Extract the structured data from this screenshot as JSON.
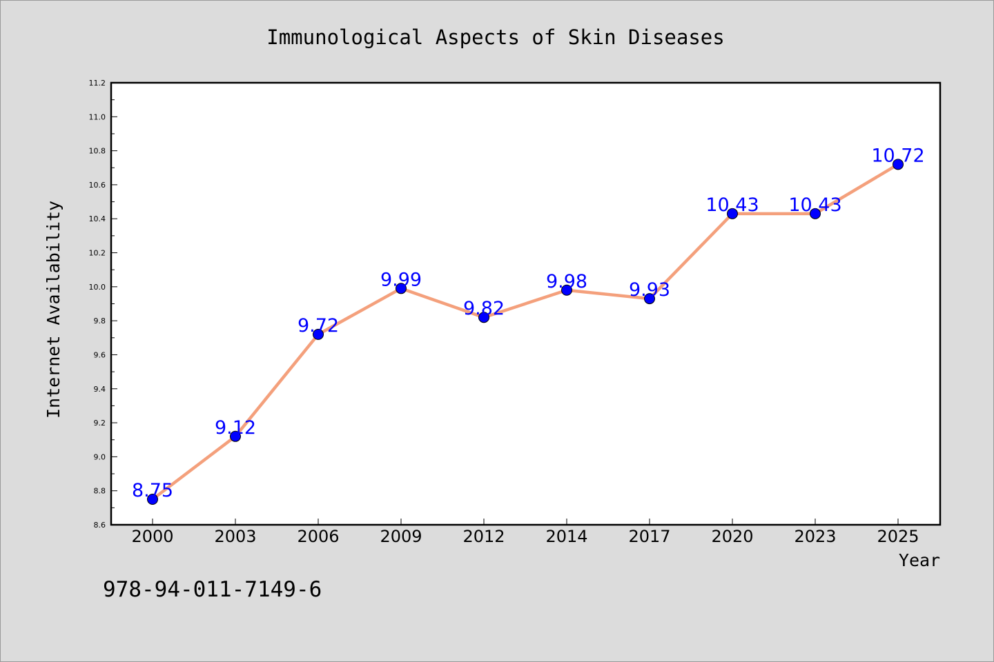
{
  "chart_data": {
    "type": "line",
    "title": "Immunological Aspects of Skin Diseases",
    "xlabel": "Year",
    "ylabel": "Internet Availability",
    "categories": [
      "2000",
      "2003",
      "2006",
      "2009",
      "2012",
      "2014",
      "2017",
      "2020",
      "2023",
      "2025"
    ],
    "series": [
      {
        "values": [
          8.75,
          9.12,
          9.72,
          9.99,
          9.82,
          9.98,
          9.93,
          10.43,
          10.43,
          10.72
        ],
        "labels": [
          "8.75",
          "9.12",
          "9.72",
          "9.99",
          "9.82",
          "9.98",
          "9.93",
          "10.43",
          "10.43",
          "10.72"
        ],
        "line_color": "#f4a07c",
        "marker_color": "#0000ff",
        "label_color": "#0000ff"
      }
    ],
    "ylim": [
      8.6,
      11.2
    ],
    "yticks": [
      "8.6",
      "8.8",
      "9.0",
      "9.2",
      "9.4",
      "9.6",
      "9.8",
      "10.0",
      "10.2",
      "10.4",
      "10.6",
      "10.8",
      "11.0",
      "11.2"
    ],
    "grid": false,
    "legend": "none"
  },
  "footer": {
    "isbn": "978-94-011-7149-6"
  }
}
